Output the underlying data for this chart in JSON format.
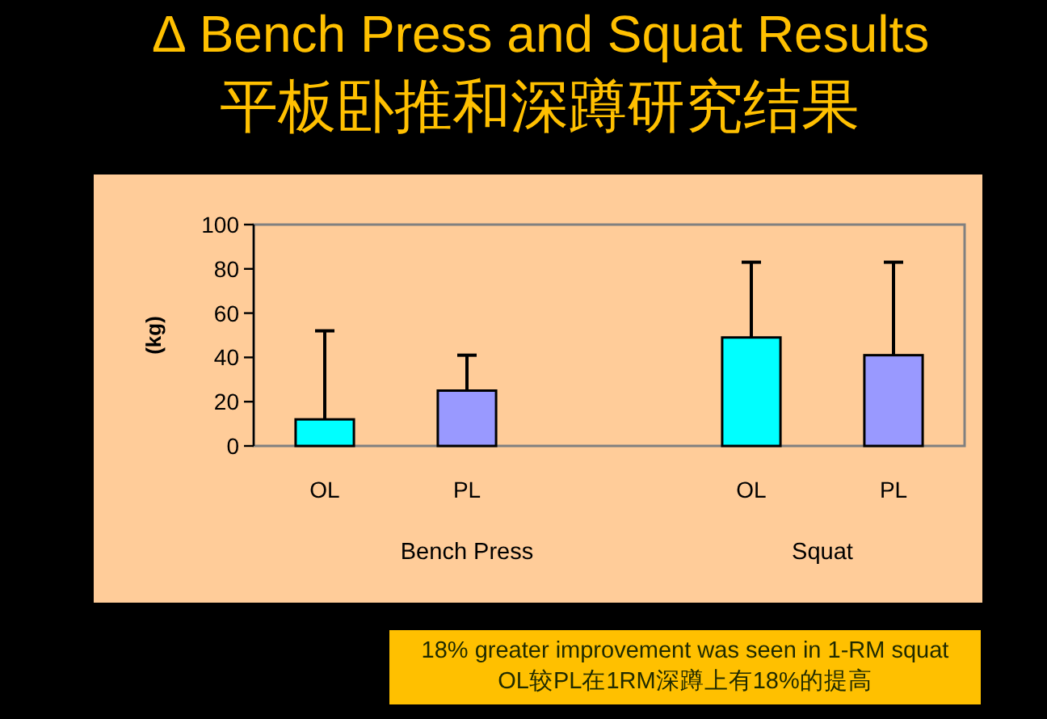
{
  "chart_data": {
    "type": "bar",
    "title": "∆ Bench Press and Squat Results",
    "subtitle": "平板卧推和深蹲研究结果",
    "ylabel": "(kg)",
    "categories": [
      "Bench Press",
      "Squat"
    ],
    "series": [
      {
        "name": "OL",
        "color": "#00ffff",
        "values": [
          12,
          49
        ],
        "errors": [
          [
            12,
            52
          ],
          [
            49,
            83
          ]
        ]
      },
      {
        "name": "PL",
        "color": "#9999ff",
        "values": [
          25,
          41
        ],
        "errors": [
          [
            25,
            41
          ],
          [
            41,
            83
          ]
        ]
      }
    ],
    "ylim": [
      0,
      100
    ],
    "yticks": [
      0,
      20,
      40,
      60,
      80,
      100
    ],
    "annotations": [
      "18% greater improvement was seen in 1-RM squat",
      "OL较PL在1RM深蹲上有18%的提高"
    ]
  }
}
